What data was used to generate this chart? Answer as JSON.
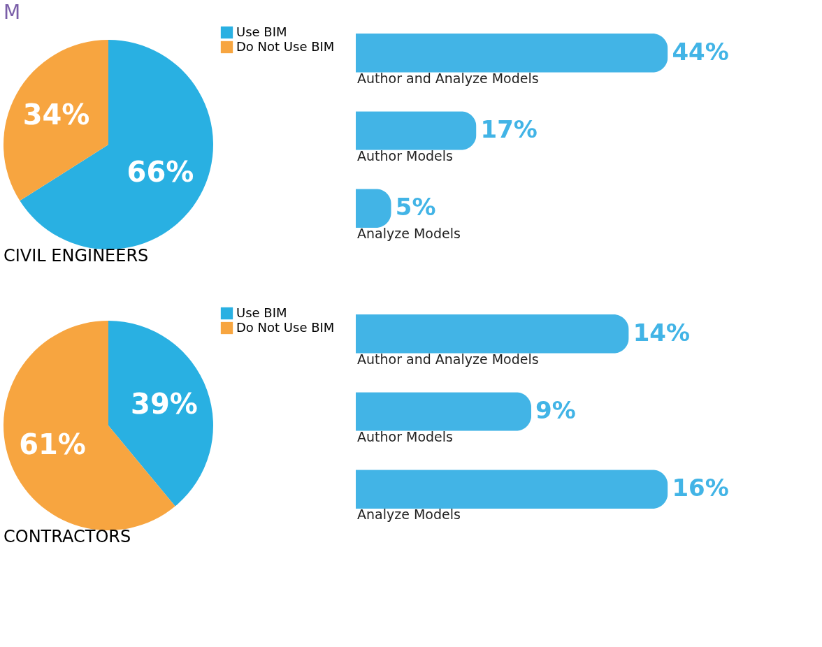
{
  "chart_data": [
    {
      "type": "pie",
      "title": "M",
      "xlabel": "CIVIL ENGINEERS",
      "categories": [
        "Use BIM",
        "Do Not Use BIM"
      ],
      "values": [
        66,
        34
      ],
      "colors": [
        "#29b0e2",
        "#f7a540"
      ],
      "value_labels": [
        "66%",
        "34%"
      ],
      "legend": "right"
    },
    {
      "type": "bar",
      "orientation": "horizontal",
      "categories": [
        "Author and Analyze Models",
        "Author Models",
        "Analyze Models"
      ],
      "values": [
        44,
        17,
        5
      ],
      "color": "#42b4e6",
      "value_labels": [
        "44%",
        "17%",
        "5%"
      ]
    },
    {
      "type": "pie",
      "xlabel": "CONTRACTORS",
      "categories": [
        "Use BIM",
        "Do Not Use BIM"
      ],
      "values": [
        39,
        61
      ],
      "colors": [
        "#29b0e2",
        "#f7a540"
      ],
      "value_labels": [
        "39%",
        "61%"
      ],
      "legend": "right"
    },
    {
      "type": "bar",
      "orientation": "horizontal",
      "categories": [
        "Author and Analyze Models",
        "Author Models",
        "Analyze Models"
      ],
      "values": [
        14,
        9,
        16
      ],
      "color": "#42b4e6",
      "value_labels": [
        "14%",
        "9%",
        "16%"
      ]
    }
  ]
}
